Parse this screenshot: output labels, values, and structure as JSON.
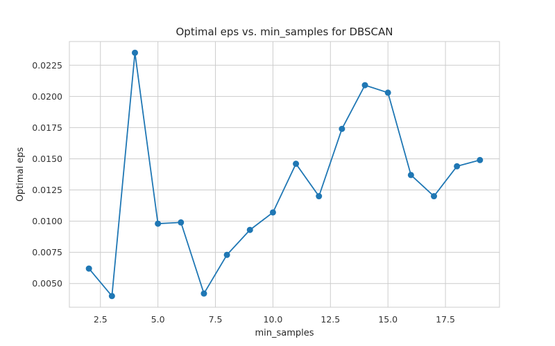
{
  "chart_data": {
    "type": "line",
    "title": "Optimal eps vs. min_samples for DBSCAN",
    "xlabel": "min_samples",
    "ylabel": "Optimal eps",
    "xlim": [
      1.15,
      19.85
    ],
    "ylim": [
      0.0031,
      0.0244
    ],
    "x_ticks": [
      2.5,
      5.0,
      7.5,
      10.0,
      12.5,
      15.0,
      17.5
    ],
    "x_tick_labels": [
      "2.5",
      "5.0",
      "7.5",
      "10.0",
      "12.5",
      "15.0",
      "17.5"
    ],
    "y_ticks": [
      0.005,
      0.0075,
      0.01,
      0.0125,
      0.015,
      0.0175,
      0.02,
      0.0225
    ],
    "y_tick_labels": [
      "0.0050",
      "0.0075",
      "0.0100",
      "0.0125",
      "0.0150",
      "0.0175",
      "0.0200",
      "0.0225"
    ],
    "grid": true,
    "line_color": "#1f77b4",
    "marker": "circle",
    "series": [
      {
        "x": [
          2,
          3,
          4,
          5,
          6,
          7,
          8,
          9,
          10,
          11,
          12,
          13,
          14,
          15,
          16,
          17,
          18,
          19
        ],
        "values": [
          0.0062,
          0.004,
          0.0235,
          0.0098,
          0.0099,
          0.0042,
          0.0073,
          0.0093,
          0.0107,
          0.0146,
          0.012,
          0.0174,
          0.0209,
          0.0203,
          0.0137,
          0.012,
          0.0144,
          0.0149
        ]
      }
    ]
  }
}
